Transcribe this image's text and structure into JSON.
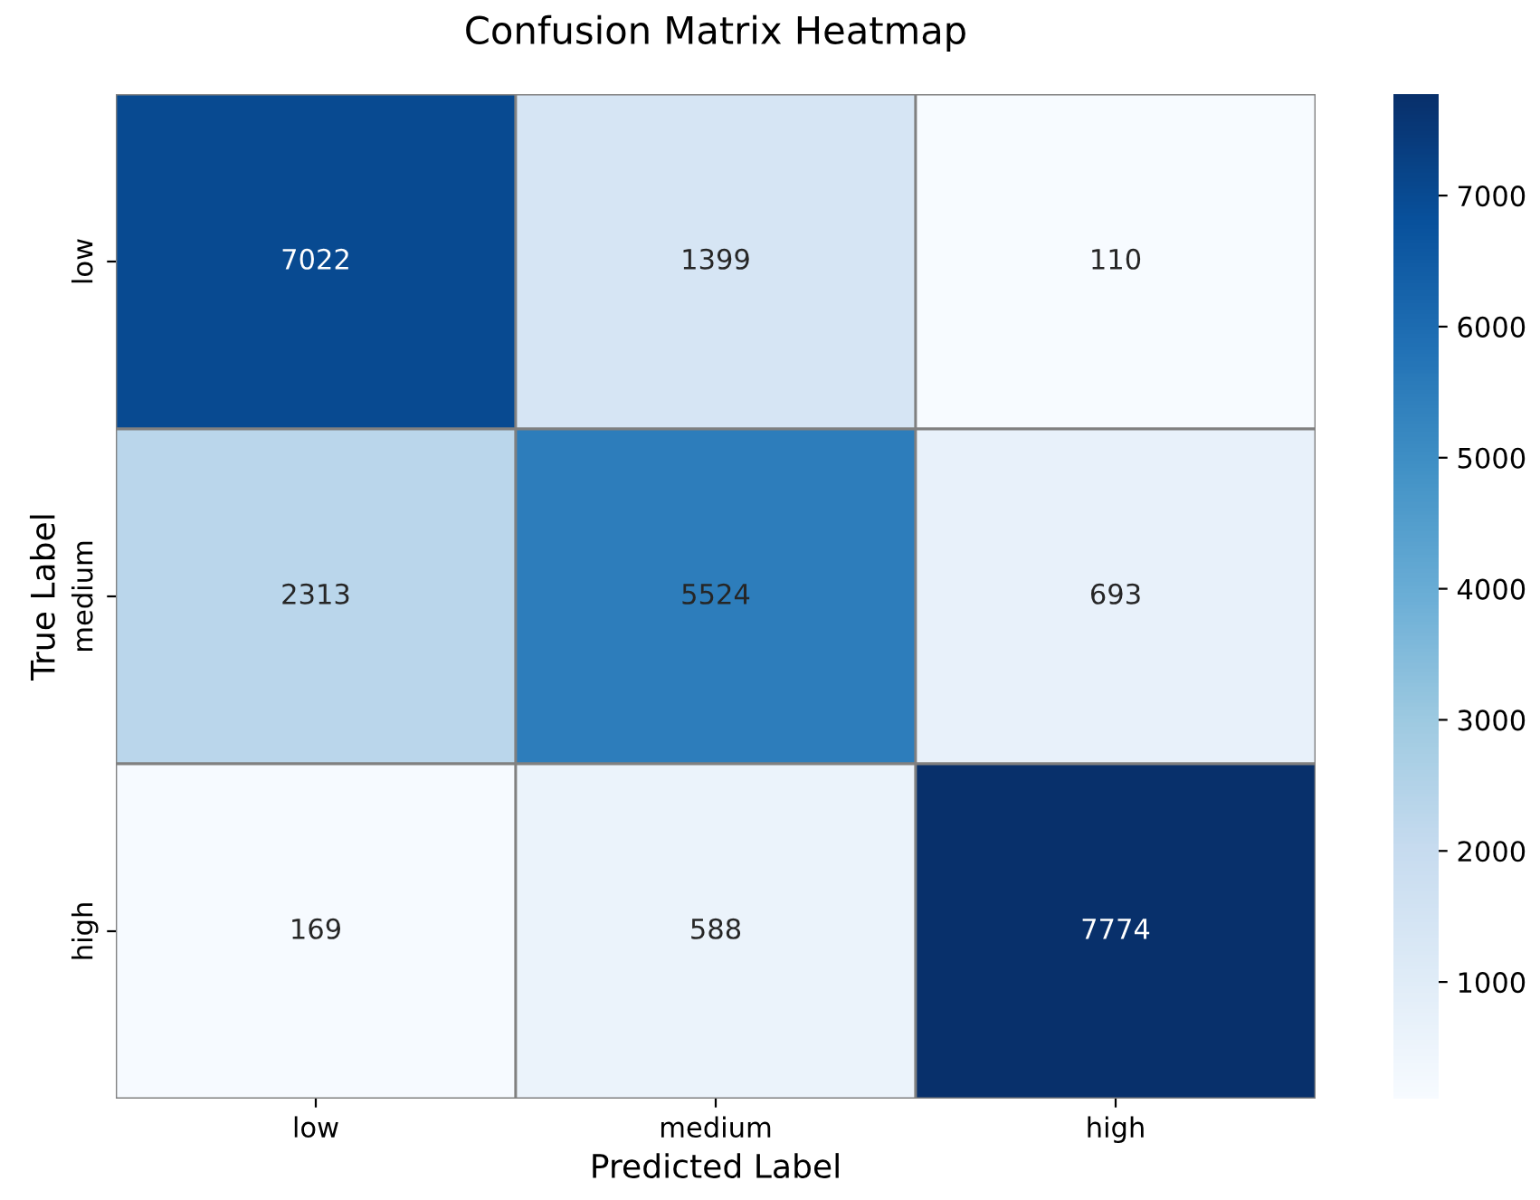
{
  "chart_data": {
    "type": "heatmap",
    "title": "Confusion Matrix Heatmap",
    "xlabel": "Predicted Label",
    "ylabel": "True Label",
    "categories": [
      "low",
      "medium",
      "high"
    ],
    "y_categories": [
      "low",
      "medium",
      "high"
    ],
    "cells": [
      [
        7022,
        1399,
        110
      ],
      [
        2313,
        5524,
        693
      ],
      [
        169,
        588,
        7774
      ]
    ],
    "clim": [
      110,
      7774
    ],
    "cticks": [
      1000,
      2000,
      3000,
      4000,
      5000,
      6000,
      7000
    ],
    "data_labels": true
  }
}
